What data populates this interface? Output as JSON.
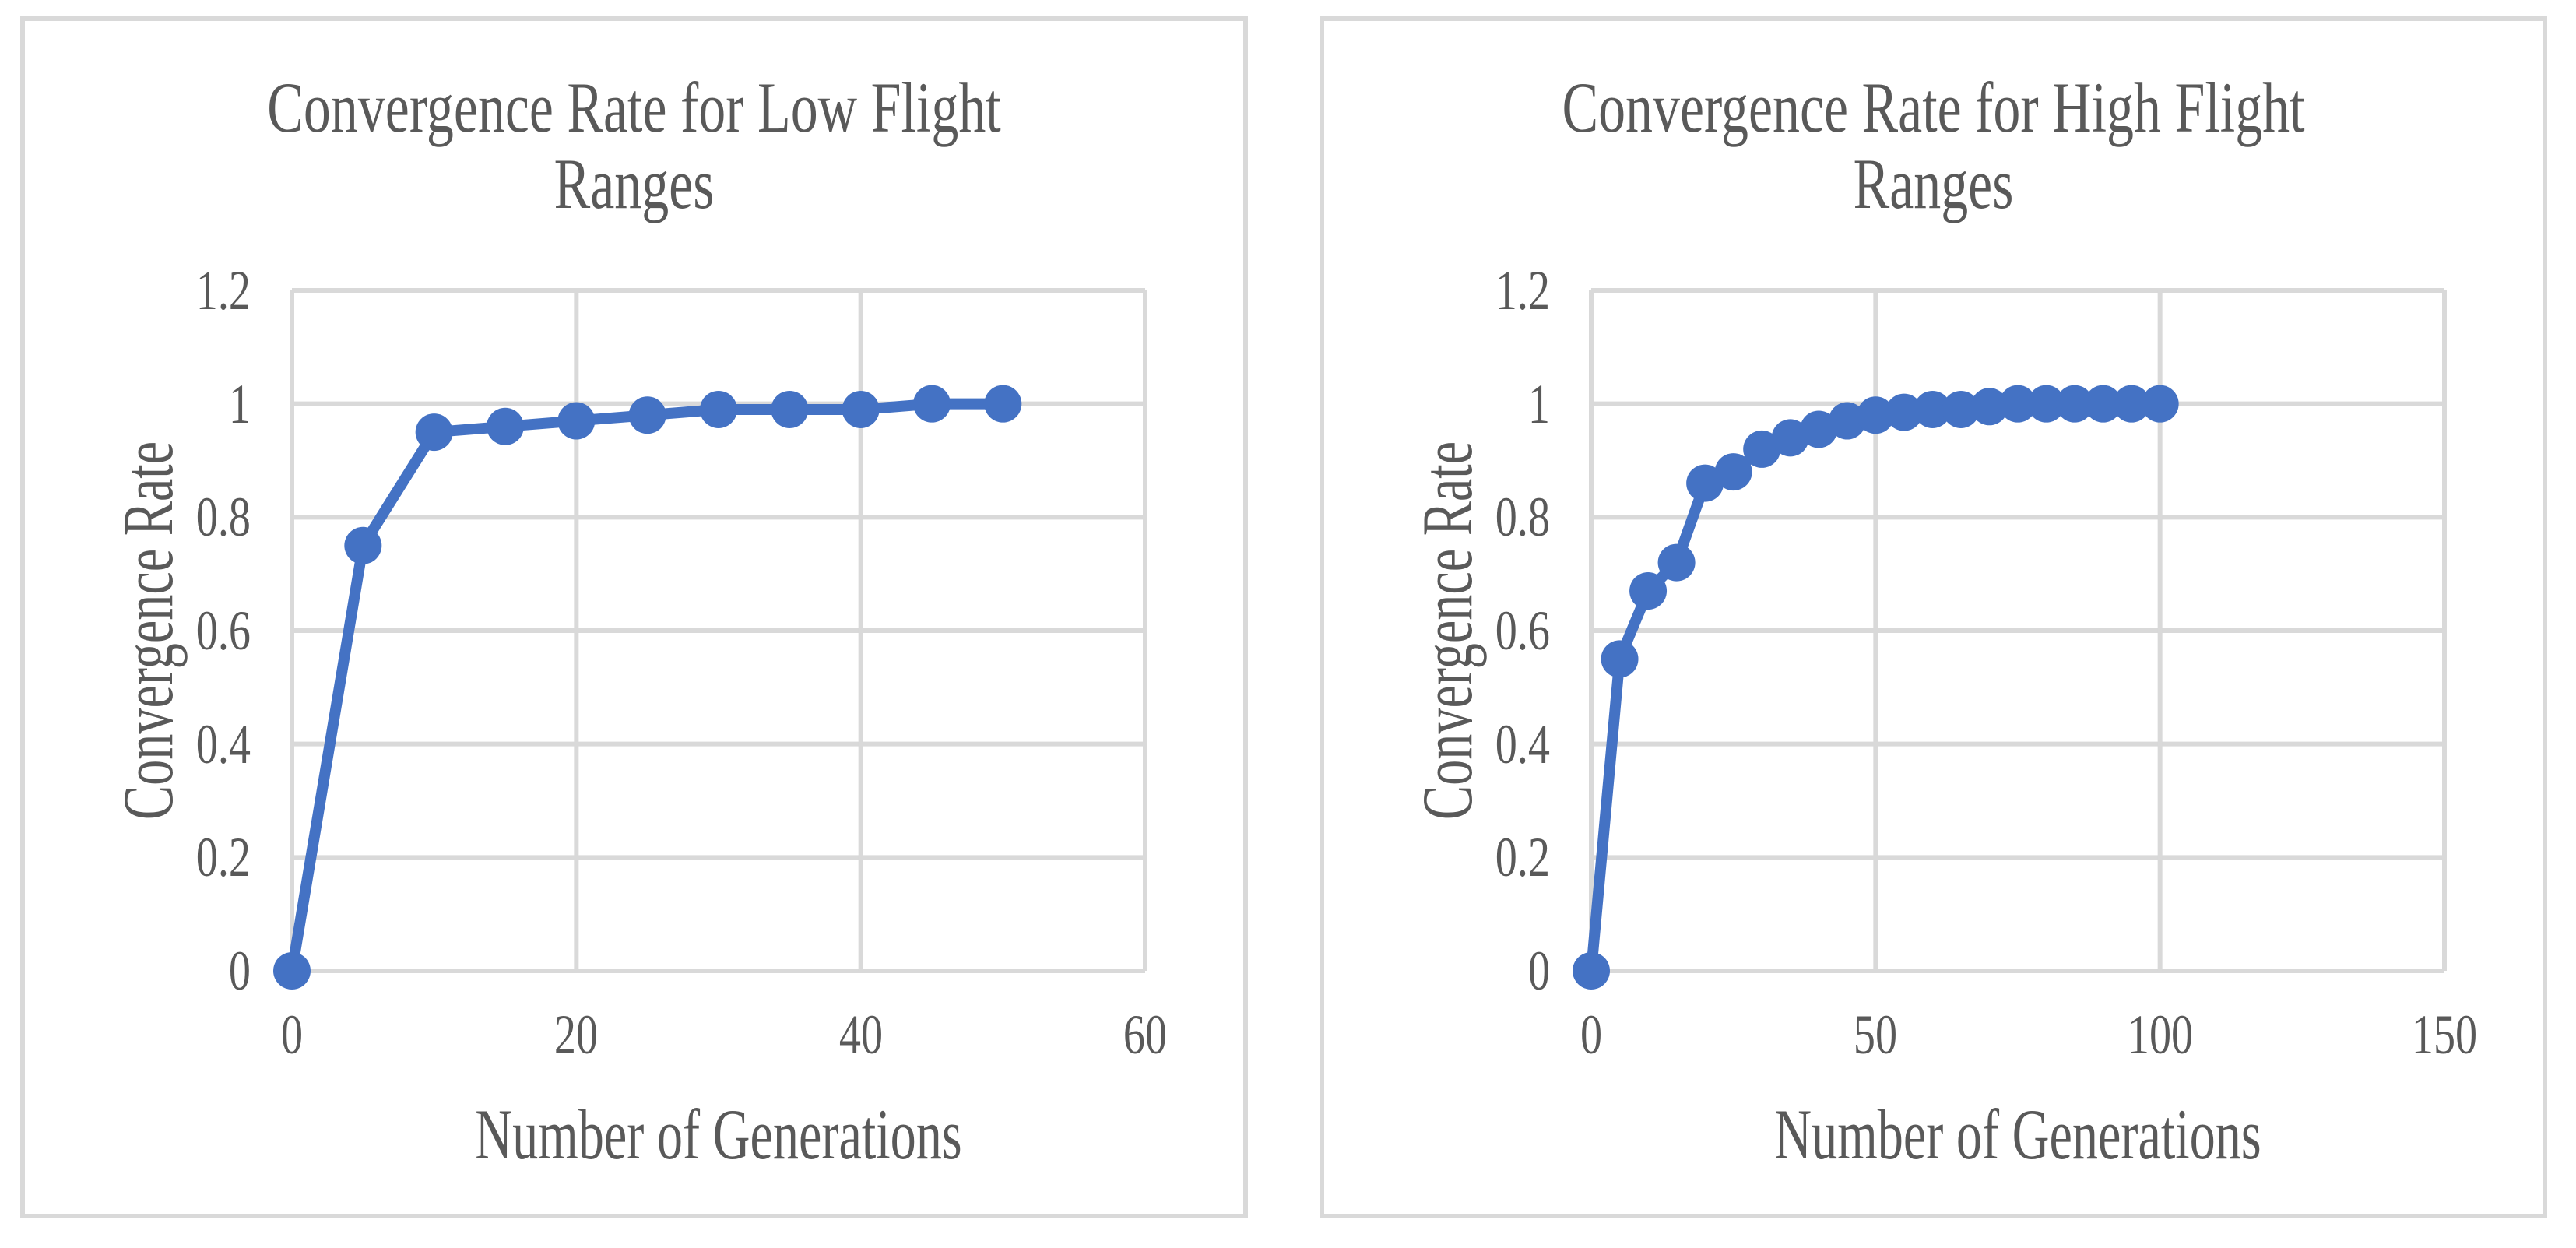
{
  "style": {
    "series_color": "#4472c4",
    "grid_color": "#d9d9d9",
    "panel_border_color": "#d9d9d9",
    "text_color": "#595959",
    "background": "#ffffff"
  },
  "chart_data": [
    {
      "type": "line",
      "title": "Convergence Rate for Low Flight Ranges",
      "title_lines": [
        "Convergence Rate for Low Flight",
        "Ranges"
      ],
      "xlabel": "Number of Generations",
      "ylabel": "Convergence Rate",
      "xlim": [
        0,
        60
      ],
      "ylim": [
        0,
        1.2
      ],
      "xticks": [
        0,
        20,
        40,
        60
      ],
      "xtick_labels": [
        "0",
        "20",
        "40",
        "60"
      ],
      "yticks": [
        0,
        0.2,
        0.4,
        0.6,
        0.8,
        1,
        1.2
      ],
      "ytick_labels": [
        "0",
        "0.2",
        "0.4",
        "0.6",
        "0.8",
        "1",
        "1.2"
      ],
      "grid": true,
      "legend": false,
      "marker": "circle",
      "series": [
        {
          "name": "Convergence Rate",
          "x": [
            0,
            5,
            10,
            15,
            20,
            25,
            30,
            35,
            40,
            45,
            50
          ],
          "y": [
            0,
            0.75,
            0.95,
            0.96,
            0.97,
            0.98,
            0.99,
            0.99,
            0.99,
            1.0,
            1.0
          ]
        }
      ]
    },
    {
      "type": "line",
      "title": "Convergence Rate for High Flight Ranges",
      "title_lines": [
        "Convergence Rate for High Flight",
        "Ranges"
      ],
      "xlabel": "Number of Generations",
      "ylabel": "Convergence Rate",
      "xlim": [
        0,
        150
      ],
      "ylim": [
        0,
        1.2
      ],
      "xticks": [
        0,
        50,
        100,
        150
      ],
      "xtick_labels": [
        "0",
        "50",
        "100",
        "150"
      ],
      "yticks": [
        0,
        0.2,
        0.4,
        0.6,
        0.8,
        1,
        1.2
      ],
      "ytick_labels": [
        "0",
        "0.2",
        "0.4",
        "0.6",
        "0.8",
        "1",
        "1.2"
      ],
      "grid": true,
      "legend": false,
      "marker": "circle",
      "series": [
        {
          "name": "Convergence Rate",
          "x": [
            0,
            5,
            10,
            15,
            20,
            25,
            30,
            35,
            40,
            45,
            50,
            55,
            60,
            65,
            70,
            75,
            80,
            85,
            90,
            95,
            100
          ],
          "y": [
            0,
            0.55,
            0.67,
            0.72,
            0.86,
            0.88,
            0.92,
            0.94,
            0.955,
            0.97,
            0.98,
            0.985,
            0.99,
            0.99,
            0.995,
            1.0,
            1.0,
            1.0,
            1.0,
            1.0,
            1.0
          ]
        }
      ]
    }
  ]
}
